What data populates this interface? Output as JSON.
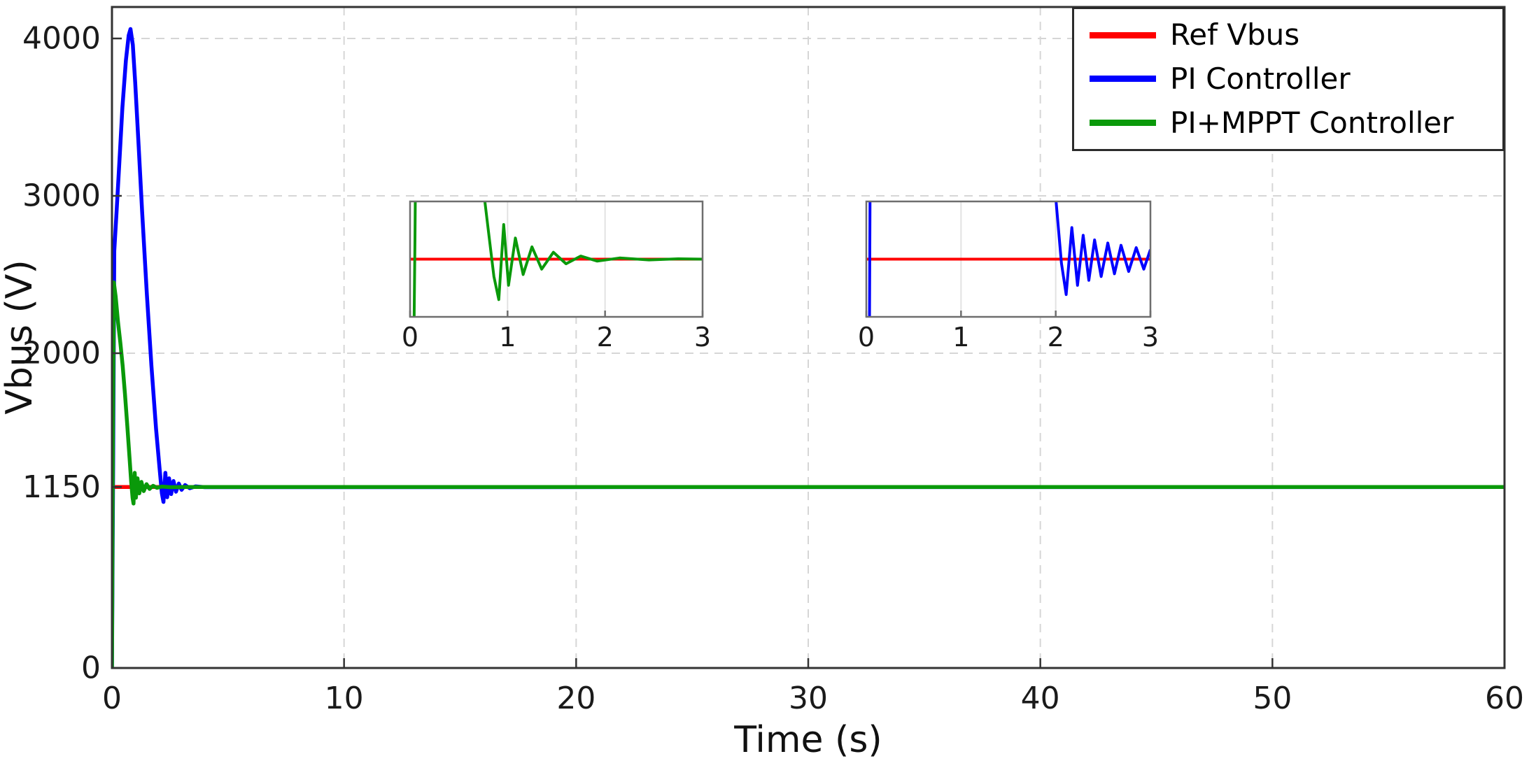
{
  "chart_data": {
    "type": "line",
    "title": "",
    "xlabel": "Time (s)",
    "ylabel": "Vbus (V)",
    "xlim": [
      0,
      60
    ],
    "ylim": [
      0,
      4200
    ],
    "xticks": [
      0,
      10,
      20,
      30,
      40,
      50,
      60
    ],
    "yticks": [
      0,
      1150,
      2000,
      3000,
      4000
    ],
    "grid": true,
    "legend": {
      "position": "top-right",
      "border": true
    },
    "colors": {
      "grid": "#d6d6d6",
      "axis": "#333333",
      "text": "#1a1a1a"
    },
    "series": [
      {
        "name": "Ref Vbus",
        "color": "#ff0000",
        "points": [
          [
            0,
            1150
          ],
          [
            60,
            1150
          ]
        ]
      },
      {
        "name": "PI Controller",
        "color": "#0000ff",
        "points": [
          [
            0,
            0
          ],
          [
            0.05,
            1300
          ],
          [
            0.1,
            2650
          ],
          [
            0.2,
            2900
          ],
          [
            0.3,
            3160
          ],
          [
            0.45,
            3560
          ],
          [
            0.6,
            3860
          ],
          [
            0.72,
            4020
          ],
          [
            0.8,
            4060
          ],
          [
            0.9,
            3960
          ],
          [
            1.0,
            3720
          ],
          [
            1.15,
            3320
          ],
          [
            1.3,
            2900
          ],
          [
            1.5,
            2380
          ],
          [
            1.7,
            1920
          ],
          [
            1.9,
            1520
          ],
          [
            2.05,
            1270
          ],
          [
            2.15,
            1110
          ],
          [
            2.22,
            1055
          ],
          [
            2.3,
            1240
          ],
          [
            2.38,
            1085
          ],
          [
            2.46,
            1205
          ],
          [
            2.55,
            1105
          ],
          [
            2.65,
            1188
          ],
          [
            2.76,
            1120
          ],
          [
            2.88,
            1172
          ],
          [
            3.0,
            1132
          ],
          [
            3.15,
            1162
          ],
          [
            3.35,
            1142
          ],
          [
            3.6,
            1154
          ],
          [
            4.0,
            1149
          ],
          [
            60,
            1150
          ]
        ]
      },
      {
        "name": "PI+MPPT Controller",
        "color": "#0a990a",
        "points": [
          [
            0,
            0
          ],
          [
            0.04,
            1400
          ],
          [
            0.08,
            2450
          ],
          [
            0.16,
            2360
          ],
          [
            0.26,
            2200
          ],
          [
            0.36,
            2070
          ],
          [
            0.46,
            1920
          ],
          [
            0.56,
            1740
          ],
          [
            0.66,
            1540
          ],
          [
            0.76,
            1330
          ],
          [
            0.83,
            1180
          ],
          [
            0.89,
            1080
          ],
          [
            0.93,
            1045
          ],
          [
            0.98,
            1240
          ],
          [
            1.03,
            1082
          ],
          [
            1.1,
            1205
          ],
          [
            1.18,
            1110
          ],
          [
            1.27,
            1182
          ],
          [
            1.37,
            1124
          ],
          [
            1.49,
            1168
          ],
          [
            1.62,
            1138
          ],
          [
            1.77,
            1158
          ],
          [
            1.94,
            1145
          ],
          [
            2.15,
            1153
          ],
          [
            2.5,
            1149
          ],
          [
            3.0,
            1150
          ],
          [
            60,
            1150
          ]
        ]
      }
    ],
    "insets": [
      {
        "label": "zoom-pi-mppt-controller-0-3s",
        "xlim": [
          0,
          3
        ],
        "ylim": [
          1000,
          1300
        ],
        "xticks": [
          0,
          1,
          2,
          3
        ],
        "series": [
          {
            "name": "Ref Vbus",
            "color": "#ff0000",
            "points": [
              [
                0,
                1150
              ],
              [
                3,
                1150
              ]
            ]
          },
          {
            "name": "PI+MPPT Controller",
            "color": "#0a990a",
            "points": [
              [
                0,
                0
              ],
              [
                0.05,
                1200
              ],
              [
                0.09,
                2450
              ],
              [
                0.3,
                2150
              ],
              [
                0.55,
                1760
              ],
              [
                0.72,
                1400
              ],
              [
                0.8,
                1230
              ],
              [
                0.86,
                1105
              ],
              [
                0.91,
                1045
              ],
              [
                0.96,
                1240
              ],
              [
                1.01,
                1082
              ],
              [
                1.08,
                1205
              ],
              [
                1.16,
                1110
              ],
              [
                1.25,
                1182
              ],
              [
                1.35,
                1124
              ],
              [
                1.47,
                1168
              ],
              [
                1.6,
                1138
              ],
              [
                1.75,
                1158
              ],
              [
                1.92,
                1145
              ],
              [
                2.15,
                1153
              ],
              [
                2.45,
                1148
              ],
              [
                2.75,
                1151
              ],
              [
                3.0,
                1150
              ]
            ]
          }
        ]
      },
      {
        "label": "zoom-pi-controller-0-3s",
        "xlim": [
          0,
          3
        ],
        "ylim": [
          1000,
          1300
        ],
        "xticks": [
          0,
          1,
          2,
          3
        ],
        "series": [
          {
            "name": "Ref Vbus",
            "color": "#ff0000",
            "points": [
              [
                0,
                1150
              ],
              [
                3,
                1150
              ]
            ]
          },
          {
            "name": "PI Controller",
            "color": "#0000ff",
            "points": [
              [
                0,
                0
              ],
              [
                0.03,
                800
              ],
              [
                0.06,
                2500
              ],
              [
                0.4,
                3500
              ],
              [
                0.8,
                4060
              ],
              [
                1.3,
                2900
              ],
              [
                1.8,
                1700
              ],
              [
                2.0,
                1310
              ],
              [
                2.06,
                1140
              ],
              [
                2.11,
                1058
              ],
              [
                2.17,
                1232
              ],
              [
                2.23,
                1082
              ],
              [
                2.29,
                1212
              ],
              [
                2.35,
                1095
              ],
              [
                2.41,
                1200
              ],
              [
                2.48,
                1105
              ],
              [
                2.55,
                1192
              ],
              [
                2.62,
                1112
              ],
              [
                2.69,
                1186
              ],
              [
                2.77,
                1118
              ],
              [
                2.85,
                1180
              ],
              [
                2.93,
                1124
              ],
              [
                3.0,
                1175
              ]
            ]
          }
        ]
      }
    ]
  }
}
